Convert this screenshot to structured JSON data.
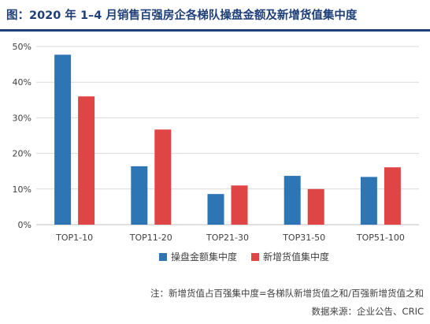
{
  "title": "图：2020 年 1–4 月销售百强房企各梯队操盘金额及新增货值集中度",
  "note": "注：新增货值占百强集中度=各梯队新增货值之和/百强新增货值之和",
  "source": "数据来源：企业公告、CRIC",
  "colors": {
    "title": "#1f3f78",
    "series_1": "#2e75b6",
    "series_2": "#e04545",
    "axis": "#bfbfbf",
    "grid": "#d9d9d9"
  },
  "chart_data": {
    "type": "bar",
    "categories": [
      "TOP1-10",
      "TOP11-20",
      "TOP21-30",
      "TOP31-50",
      "TOP51-100"
    ],
    "series": [
      {
        "name": "操盘金额集中度",
        "values": [
          47.7,
          16.4,
          8.6,
          13.7,
          13.4
        ]
      },
      {
        "name": "新增货值集中度",
        "values": [
          36.0,
          26.7,
          11.0,
          10.0,
          16.1
        ]
      }
    ],
    "y_ticks": [
      "0%",
      "10%",
      "20%",
      "30%",
      "40%",
      "50%"
    ],
    "ylim": [
      0,
      50
    ],
    "grid": true,
    "legend_position": "bottom-center"
  }
}
